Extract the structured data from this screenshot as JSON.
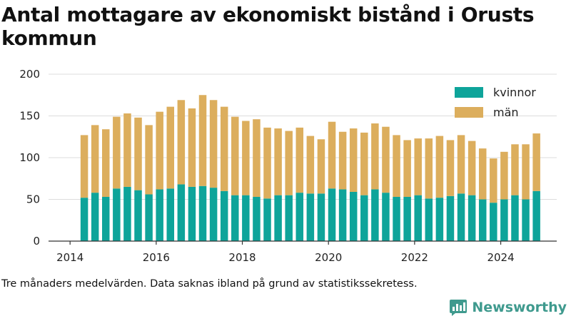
{
  "chart_data": {
    "type": "bar",
    "stacked": true,
    "title": "Antal mottagare av ekonomiskt bistånd i Orusts kommun",
    "xlabel": "",
    "ylabel": "",
    "ylim": [
      0,
      200
    ],
    "yticks": [
      "0",
      "50",
      "100",
      "150",
      "200"
    ],
    "xticks": [
      "2014",
      "2016",
      "2018",
      "2020",
      "2022",
      "2024"
    ],
    "xtick_values": [
      2014,
      2016,
      2018,
      2020,
      2022,
      2024
    ],
    "xlim": [
      2013.5,
      2025.3
    ],
    "grid": true,
    "legend_position": "top-right",
    "x": [
      2014.33,
      2014.58,
      2014.83,
      2015.08,
      2015.33,
      2015.58,
      2015.83,
      2016.08,
      2016.33,
      2016.58,
      2016.83,
      2017.08,
      2017.33,
      2017.58,
      2017.83,
      2018.08,
      2018.33,
      2018.58,
      2018.83,
      2019.08,
      2019.33,
      2019.58,
      2019.83,
      2020.08,
      2020.33,
      2020.58,
      2020.83,
      2021.08,
      2021.33,
      2021.58,
      2021.83,
      2022.08,
      2022.33,
      2022.58,
      2022.83,
      2023.08,
      2023.33,
      2023.58,
      2023.83,
      2024.08,
      2024.33,
      2024.58,
      2024.83
    ],
    "series": [
      {
        "name": "kvinnor",
        "color": "#0ea49a",
        "values": [
          52,
          58,
          53,
          63,
          65,
          61,
          56,
          62,
          63,
          68,
          65,
          66,
          64,
          60,
          55,
          55,
          53,
          51,
          55,
          55,
          58,
          57,
          57,
          63,
          62,
          59,
          55,
          62,
          58,
          53,
          53,
          55,
          51,
          52,
          54,
          57,
          55,
          50,
          46,
          50,
          55,
          50,
          60
        ]
      },
      {
        "name": "män",
        "color": "#dcae5d",
        "values": [
          75,
          81,
          81,
          86,
          88,
          87,
          83,
          93,
          98,
          101,
          94,
          109,
          105,
          101,
          94,
          89,
          93,
          85,
          80,
          77,
          78,
          69,
          65,
          80,
          69,
          76,
          75,
          79,
          79,
          74,
          68,
          68,
          72,
          74,
          67,
          70,
          65,
          61,
          53,
          57,
          61,
          66,
          69
        ]
      }
    ]
  },
  "footer": {
    "note": "Tre månaders medelvärden. Data saknas ibland på grund av statistikssekretess.",
    "brand": "Newsworthy",
    "logo_icon": "newsworthy-logo-icon"
  }
}
